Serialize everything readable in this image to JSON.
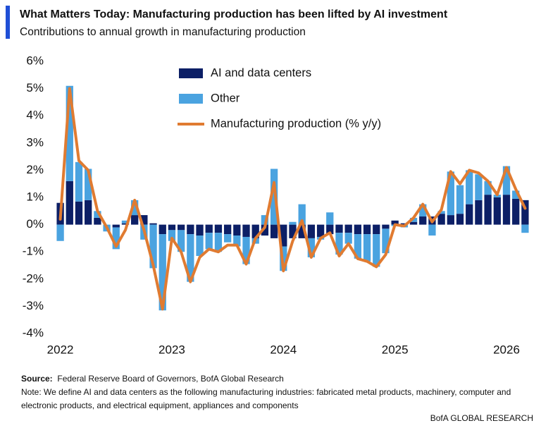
{
  "chart_data": {
    "type": "bar",
    "title": "What Matters Today: Manufacturing production has been lifted by AI investment",
    "subtitle": "Contributions to annual growth in manufacturing production",
    "categories": [
      "2022",
      null,
      null,
      null,
      null,
      null,
      null,
      null,
      null,
      null,
      null,
      null,
      "2023",
      null,
      null,
      null,
      null,
      null,
      null,
      null,
      null,
      null,
      null,
      null,
      "2024",
      null,
      null,
      null,
      null,
      null,
      null,
      null,
      null,
      null,
      null,
      null,
      "2025",
      null,
      null,
      null,
      null,
      null,
      null,
      null,
      null,
      null,
      null,
      null,
      "2026",
      null,
      null
    ],
    "series": [
      {
        "name": "AI and data centers",
        "type": "bar",
        "color": "#0c1f66",
        "values": [
          0.8,
          1.6,
          0.85,
          0.9,
          0.25,
          0.0,
          -0.1,
          0.05,
          0.35,
          0.35,
          0.05,
          -0.35,
          -0.2,
          -0.2,
          -0.35,
          -0.4,
          -0.3,
          -0.3,
          -0.35,
          -0.4,
          -0.45,
          -0.5,
          -0.4,
          -0.5,
          -0.8,
          -0.5,
          -0.5,
          -0.5,
          -0.45,
          -0.35,
          -0.3,
          -0.3,
          -0.35,
          -0.35,
          -0.35,
          -0.15,
          0.15,
          0.05,
          0.1,
          0.3,
          0.3,
          0.4,
          0.35,
          0.4,
          0.75,
          0.9,
          1.1,
          1.0,
          1.1,
          0.95,
          0.9
        ]
      },
      {
        "name": "Other",
        "type": "bar",
        "color": "#4aa3e0",
        "values": [
          -0.6,
          3.5,
          1.45,
          1.15,
          0.25,
          -0.25,
          -0.8,
          0.1,
          0.55,
          -0.55,
          -1.6,
          -2.8,
          -0.4,
          -0.8,
          -1.75,
          -0.75,
          -0.6,
          -0.7,
          -0.3,
          -0.4,
          -1.0,
          -0.2,
          0.35,
          2.05,
          -0.9,
          0.1,
          0.75,
          -0.7,
          -0.1,
          0.45,
          -0.8,
          -0.4,
          -0.9,
          -1.0,
          -1.2,
          -0.9,
          -0.05,
          -0.1,
          0.15,
          0.45,
          -0.4,
          0.1,
          1.6,
          1.05,
          1.25,
          0.95,
          0.5,
          0.1,
          1.05,
          0.3,
          -0.3
        ]
      },
      {
        "name": "Manufacturing production (% y/y)",
        "type": "line",
        "color": "#e07b31",
        "values": [
          0.2,
          5.0,
          2.35,
          2.0,
          0.5,
          -0.1,
          -0.8,
          -0.2,
          0.9,
          -0.2,
          -1.5,
          -3.1,
          -0.5,
          -1.0,
          -2.1,
          -1.2,
          -0.9,
          -1.0,
          -0.75,
          -0.75,
          -1.45,
          -0.5,
          -0.1,
          1.55,
          -1.7,
          -0.6,
          0.15,
          -1.2,
          -0.5,
          -0.3,
          -1.15,
          -0.7,
          -1.25,
          -1.35,
          -1.55,
          -1.1,
          0.0,
          -0.05,
          0.25,
          0.75,
          0.1,
          0.55,
          1.95,
          1.5,
          2.0,
          1.9,
          1.6,
          1.1,
          2.1,
          1.3,
          0.6
        ]
      }
    ],
    "ylim": [
      -4,
      6
    ],
    "yticks": [
      {
        "value": -4,
        "label": "-4%"
      },
      {
        "value": -3,
        "label": "-3%"
      },
      {
        "value": -2,
        "label": "-2%"
      },
      {
        "value": -1,
        "label": "-1%"
      },
      {
        "value": 0,
        "label": "0%"
      },
      {
        "value": 1,
        "label": "1%"
      },
      {
        "value": 2,
        "label": "2%"
      },
      {
        "value": 3,
        "label": "3%"
      },
      {
        "value": 4,
        "label": "4%"
      },
      {
        "value": 5,
        "label": "5%"
      },
      {
        "value": 6,
        "label": "6%"
      }
    ],
    "grid": false,
    "legend": "top",
    "source_label": "Source:",
    "source": "Federal Reserve Board of Governors, BofA Global Research",
    "note": "Note: We define AI and data centers as the following manufacturing industries: fabricated metal products, machinery, computer and electronic products, and electrical equipment, appliances and components",
    "branding": "BofA GLOBAL RESEARCH"
  }
}
